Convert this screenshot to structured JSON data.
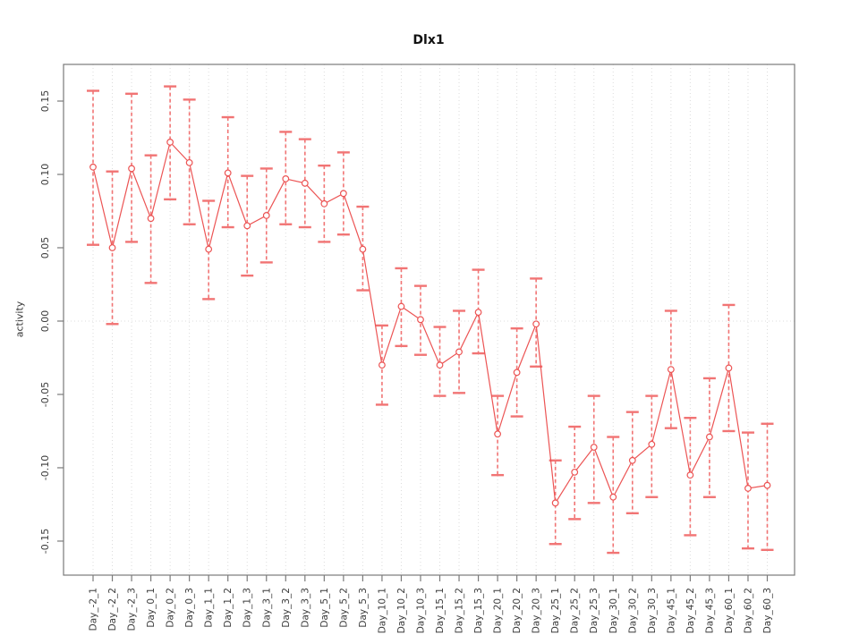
{
  "window": {
    "kind": "r-plot-output"
  },
  "colors": {
    "series": "#ec5454",
    "errorbar": "#f17474",
    "grid": "#dcdcdc",
    "axis": "#7a7a7a",
    "tick_text": "#3a3a3a",
    "title_text": "#111111",
    "background": "#ffffff"
  },
  "chart_data": {
    "type": "line",
    "title": "Dlx1",
    "xlabel": "",
    "ylabel": "activity",
    "ylim": [
      -0.1732,
      0.175
    ],
    "yticks": [
      -0.15,
      -0.1,
      -0.05,
      0.0,
      0.05,
      0.1,
      0.15
    ],
    "ytick_labels": [
      "-0.15",
      "-0.10",
      "-0.05",
      "0.00",
      "0.05",
      "0.10",
      "0.15"
    ],
    "grid": "vertical dotted gridline at every category; dotted horizontal line at y=0; full box frame; no legend",
    "legend_position": "none",
    "point_style": "open-circle",
    "error_bars": true,
    "categories": [
      "Day_-2_1",
      "Day_-2_2",
      "Day_-2_3",
      "Day_0_1",
      "Day_0_2",
      "Day_0_3",
      "Day_1_1",
      "Day_1_2",
      "Day_1_3",
      "Day_3_1",
      "Day_3_2",
      "Day_3_3",
      "Day_5_1",
      "Day_5_2",
      "Day_5_3",
      "Day_10_1",
      "Day_10_2",
      "Day_10_3",
      "Day_15_1",
      "Day_15_2",
      "Day_15_3",
      "Day_20_1",
      "Day_20_2",
      "Day_20_3",
      "Day_25_1",
      "Day_25_2",
      "Day_25_3",
      "Day_30_1",
      "Day_30_2",
      "Day_30_3",
      "Day_45_1",
      "Day_45_2",
      "Day_45_3",
      "Day_60_1",
      "Day_60_2",
      "Day_60_3"
    ],
    "series": [
      {
        "name": "activity",
        "values": [
          0.105,
          0.05,
          0.104,
          0.07,
          0.122,
          0.108,
          0.049,
          0.101,
          0.065,
          0.072,
          0.097,
          0.094,
          0.08,
          0.087,
          0.049,
          -0.03,
          0.01,
          0.001,
          -0.03,
          -0.021,
          0.006,
          -0.077,
          -0.035,
          -0.002,
          -0.124,
          -0.103,
          -0.086,
          -0.12,
          -0.095,
          -0.084,
          -0.033,
          -0.105,
          -0.079,
          -0.032,
          -0.114,
          -0.112
        ],
        "ci_low": [
          0.052,
          -0.002,
          0.054,
          0.026,
          0.083,
          0.066,
          0.015,
          0.064,
          0.031,
          0.04,
          0.066,
          0.064,
          0.054,
          0.059,
          0.021,
          -0.057,
          -0.017,
          -0.023,
          -0.051,
          -0.049,
          -0.022,
          -0.105,
          -0.065,
          -0.031,
          -0.152,
          -0.135,
          -0.124,
          -0.158,
          -0.131,
          -0.12,
          -0.073,
          -0.146,
          -0.12,
          -0.075,
          -0.155,
          -0.156
        ],
        "ci_high": [
          0.157,
          0.102,
          0.155,
          0.113,
          0.16,
          0.151,
          0.082,
          0.139,
          0.099,
          0.104,
          0.129,
          0.124,
          0.106,
          0.115,
          0.078,
          -0.003,
          0.036,
          0.024,
          -0.004,
          0.007,
          0.035,
          -0.051,
          -0.005,
          0.029,
          -0.095,
          -0.072,
          -0.051,
          -0.079,
          -0.062,
          -0.051,
          0.007,
          -0.066,
          -0.039,
          0.011,
          -0.076,
          -0.07
        ]
      }
    ]
  }
}
